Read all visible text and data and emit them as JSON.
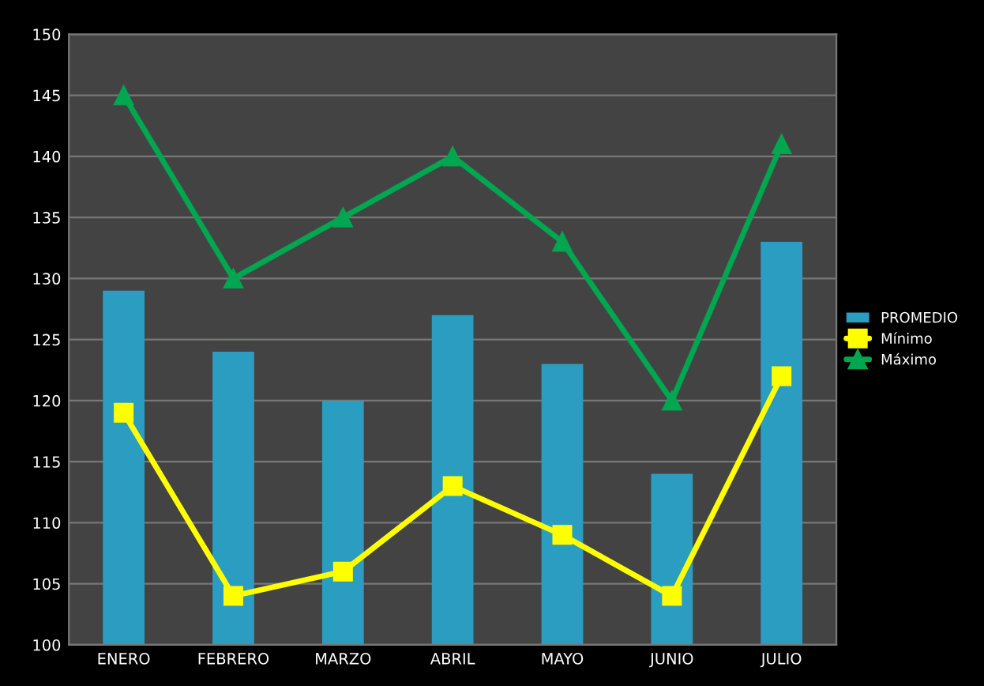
{
  "chart_data": {
    "type": "bar",
    "categories": [
      "ENERO",
      "FEBRERO",
      "MARZO",
      "ABRIL",
      "MAYO",
      "JUNIO",
      "JULIO"
    ],
    "series": [
      {
        "name": "PROMEDIO",
        "type": "bar",
        "color": "#2b9dc0",
        "values": [
          129,
          124,
          120,
          127,
          123,
          114,
          133
        ]
      },
      {
        "name": "Mínimo",
        "type": "line",
        "color": "#ffff00",
        "marker": "square",
        "values": [
          119,
          104,
          106,
          113,
          109,
          104,
          122
        ]
      },
      {
        "name": "Máximo",
        "type": "line",
        "color": "#00a650",
        "marker": "triangle",
        "values": [
          145,
          130,
          135,
          140,
          133,
          120,
          141
        ]
      }
    ],
    "ylim": [
      100,
      150
    ],
    "yticks": [
      100,
      105,
      110,
      115,
      120,
      125,
      130,
      135,
      140,
      145,
      150
    ],
    "grid": "y",
    "legend": "right"
  }
}
